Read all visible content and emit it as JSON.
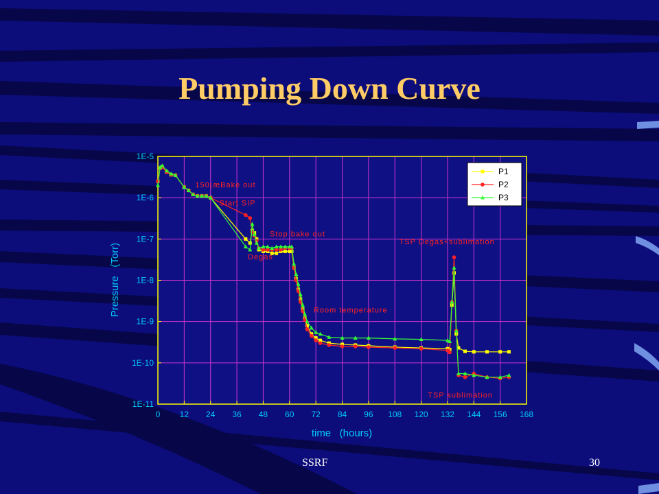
{
  "slide": {
    "title": "Pumping Down Curve",
    "footer_left": "SSRF",
    "page_number": "30"
  },
  "colors": {
    "background": "#0c0c7a",
    "title": "#ffcc66",
    "axis": "#ffff00",
    "grid": "#cc33cc",
    "label": "#00ccff",
    "annotation": "#ff2222",
    "p1": "#ffff00",
    "p2": "#ff2222",
    "p3": "#33ff33"
  },
  "chart_data": {
    "type": "line",
    "xlabel": "time   (hours)",
    "ylabel": "Pressure   (Torr)",
    "xlim": [
      0,
      168
    ],
    "ylim": [
      1e-11,
      1e-05
    ],
    "yscale": "log",
    "xticks": [
      0,
      12,
      24,
      36,
      48,
      60,
      72,
      84,
      96,
      108,
      120,
      132,
      144,
      156,
      168
    ],
    "yticks": [
      1e-05,
      1e-06,
      1e-07,
      1e-08,
      1e-09,
      1e-10,
      1e-11
    ],
    "ytick_labels": [
      "1E-5",
      "1E-6",
      "1E-7",
      "1E-8",
      "1E-9",
      "1E-10",
      "1E-11"
    ],
    "grid": true,
    "legend_position": "top-right",
    "annotations": [
      {
        "text": "150¡æBake out",
        "x": 17,
        "y": 1.8e-06
      },
      {
        "text": "Start SIP",
        "x": 28,
        "y": 6.5e-07
      },
      {
        "text": "Stop bake out",
        "x": 51,
        "y": 1.15e-07
      },
      {
        "text": "Degas",
        "x": 41,
        "y": 3.2e-08
      },
      {
        "text": "TSP Degas+sublimation",
        "x": 110,
        "y": 7.5e-08
      },
      {
        "text": "Room temperature",
        "x": 71,
        "y": 1.65e-09
      },
      {
        "text": "TSP sublimation",
        "x": 123,
        "y": 1.45e-11
      }
    ],
    "series": [
      {
        "name": "P1",
        "marker": "square",
        "points": [
          [
            0,
            2.5e-06
          ],
          [
            1,
            5.2e-06
          ],
          [
            2,
            5.5e-06
          ],
          [
            4,
            4.2e-06
          ],
          [
            6,
            3.6e-06
          ],
          [
            8,
            3.5e-06
          ],
          [
            12,
            1.8e-06
          ],
          [
            14,
            1.5e-06
          ],
          [
            16,
            1.2e-06
          ],
          [
            18,
            1.1e-06
          ],
          [
            20,
            1.1e-06
          ],
          [
            22,
            1.1e-06
          ],
          [
            24,
            1e-06
          ],
          [
            40,
            1e-07
          ],
          [
            42,
            8e-08
          ],
          [
            43,
            1.6e-07
          ],
          [
            44,
            1.4e-07
          ],
          [
            45,
            1e-07
          ],
          [
            46,
            5.5e-08
          ],
          [
            48,
            5e-08
          ],
          [
            50,
            5e-08
          ],
          [
            52,
            4.5e-08
          ],
          [
            54,
            4.5e-08
          ],
          [
            56,
            5e-08
          ],
          [
            58,
            5e-08
          ],
          [
            60,
            5e-08
          ],
          [
            61,
            5e-08
          ],
          [
            62,
            2e-08
          ],
          [
            63,
            1.1e-08
          ],
          [
            64,
            6e-09
          ],
          [
            65,
            3.5e-09
          ],
          [
            66,
            2e-09
          ],
          [
            67,
            1.2e-09
          ],
          [
            68,
            8e-10
          ],
          [
            70,
            5e-10
          ],
          [
            72,
            4e-10
          ],
          [
            74,
            3.5e-10
          ],
          [
            78,
            3e-10
          ],
          [
            84,
            2.8e-10
          ],
          [
            90,
            2.7e-10
          ],
          [
            96,
            2.6e-10
          ],
          [
            108,
            2.4e-10
          ],
          [
            120,
            2.3e-10
          ],
          [
            132,
            2.2e-10
          ],
          [
            133,
            2.1e-10
          ],
          [
            134,
            2.5e-09
          ],
          [
            135,
            1.5e-08
          ],
          [
            136,
            5e-10
          ],
          [
            137,
            2.3e-10
          ],
          [
            140,
            1.9e-10
          ],
          [
            144,
            1.85e-10
          ],
          [
            150,
            1.85e-10
          ],
          [
            156,
            1.85e-10
          ],
          [
            160,
            1.85e-10
          ]
        ]
      },
      {
        "name": "P2",
        "marker": "circle",
        "points": [
          [
            0,
            2.5e-06
          ],
          [
            1,
            5.2e-06
          ],
          [
            2,
            5.5e-06
          ],
          [
            4,
            4.2e-06
          ],
          [
            6,
            3.6e-06
          ],
          [
            8,
            3.5e-06
          ],
          [
            12,
            1.8e-06
          ],
          [
            14,
            1.5e-06
          ],
          [
            16,
            1.2e-06
          ],
          [
            18,
            1.1e-06
          ],
          [
            20,
            1.1e-06
          ],
          [
            22,
            1.1e-06
          ],
          [
            24,
            1e-06
          ],
          [
            40,
            3.8e-07
          ],
          [
            42,
            3.2e-07
          ],
          [
            43,
            1.5e-07
          ],
          [
            44,
            1.2e-07
          ],
          [
            45,
            9e-08
          ],
          [
            46,
            6e-08
          ],
          [
            48,
            5.5e-08
          ],
          [
            50,
            5.5e-08
          ],
          [
            52,
            5.5e-08
          ],
          [
            54,
            5.5e-08
          ],
          [
            56,
            5.5e-08
          ],
          [
            58,
            6e-08
          ],
          [
            60,
            6e-08
          ],
          [
            61,
            6e-08
          ],
          [
            62,
            2e-08
          ],
          [
            63,
            1e-08
          ],
          [
            64,
            5.5e-09
          ],
          [
            65,
            3e-09
          ],
          [
            66,
            1.8e-09
          ],
          [
            67,
            1.1e-09
          ],
          [
            68,
            6.5e-10
          ],
          [
            70,
            4.5e-10
          ],
          [
            72,
            3.5e-10
          ],
          [
            74,
            3e-10
          ],
          [
            78,
            2.7e-10
          ],
          [
            84,
            2.5e-10
          ],
          [
            90,
            2.5e-10
          ],
          [
            96,
            2.4e-10
          ],
          [
            108,
            2.3e-10
          ],
          [
            120,
            2.2e-10
          ],
          [
            132,
            2e-10
          ],
          [
            133,
            1.8e-10
          ],
          [
            134,
            3e-09
          ],
          [
            135,
            3.6e-08
          ],
          [
            136,
            6e-10
          ],
          [
            137,
            5e-11
          ],
          [
            140,
            4.5e-11
          ],
          [
            144,
            5.5e-11
          ],
          [
            150,
            4.5e-11
          ],
          [
            156,
            4.2e-11
          ],
          [
            160,
            4.5e-11
          ]
        ]
      },
      {
        "name": "P3",
        "marker": "triangle",
        "points": [
          [
            0,
            2e-06
          ],
          [
            1,
            5.5e-06
          ],
          [
            2,
            6e-06
          ],
          [
            4,
            4.5e-06
          ],
          [
            6,
            3.8e-06
          ],
          [
            8,
            3.5e-06
          ],
          [
            12,
            1.8e-06
          ],
          [
            14,
            1.5e-06
          ],
          [
            16,
            1.2e-06
          ],
          [
            18,
            1.1e-06
          ],
          [
            20,
            1.1e-06
          ],
          [
            22,
            1.1e-06
          ],
          [
            24,
            1e-06
          ],
          [
            40,
            6.5e-08
          ],
          [
            42,
            5.5e-08
          ],
          [
            43,
            2.3e-07
          ],
          [
            44,
            1.3e-07
          ],
          [
            45,
            8e-08
          ],
          [
            46,
            6e-08
          ],
          [
            48,
            6.5e-08
          ],
          [
            50,
            6.5e-08
          ],
          [
            52,
            6e-08
          ],
          [
            54,
            6.5e-08
          ],
          [
            56,
            6.5e-08
          ],
          [
            58,
            6.5e-08
          ],
          [
            60,
            6.5e-08
          ],
          [
            61,
            6.5e-08
          ],
          [
            62,
            2.5e-08
          ],
          [
            63,
            1.4e-08
          ],
          [
            64,
            8e-09
          ],
          [
            65,
            4.5e-09
          ],
          [
            66,
            2.5e-09
          ],
          [
            67,
            1.5e-09
          ],
          [
            68,
            1e-09
          ],
          [
            70,
            7e-10
          ],
          [
            72,
            5.5e-10
          ],
          [
            74,
            5e-10
          ],
          [
            78,
            4.2e-10
          ],
          [
            84,
            4e-10
          ],
          [
            90,
            4e-10
          ],
          [
            96,
            4e-10
          ],
          [
            108,
            3.8e-10
          ],
          [
            120,
            3.7e-10
          ],
          [
            132,
            3.5e-10
          ],
          [
            133,
            3.3e-10
          ],
          [
            134,
            3e-09
          ],
          [
            135,
            2e-08
          ],
          [
            136,
            6e-10
          ],
          [
            137,
            5.5e-11
          ],
          [
            140,
            5.5e-11
          ],
          [
            144,
            5e-11
          ],
          [
            150,
            4.5e-11
          ],
          [
            156,
            4.5e-11
          ],
          [
            160,
            5e-11
          ]
        ]
      }
    ]
  }
}
